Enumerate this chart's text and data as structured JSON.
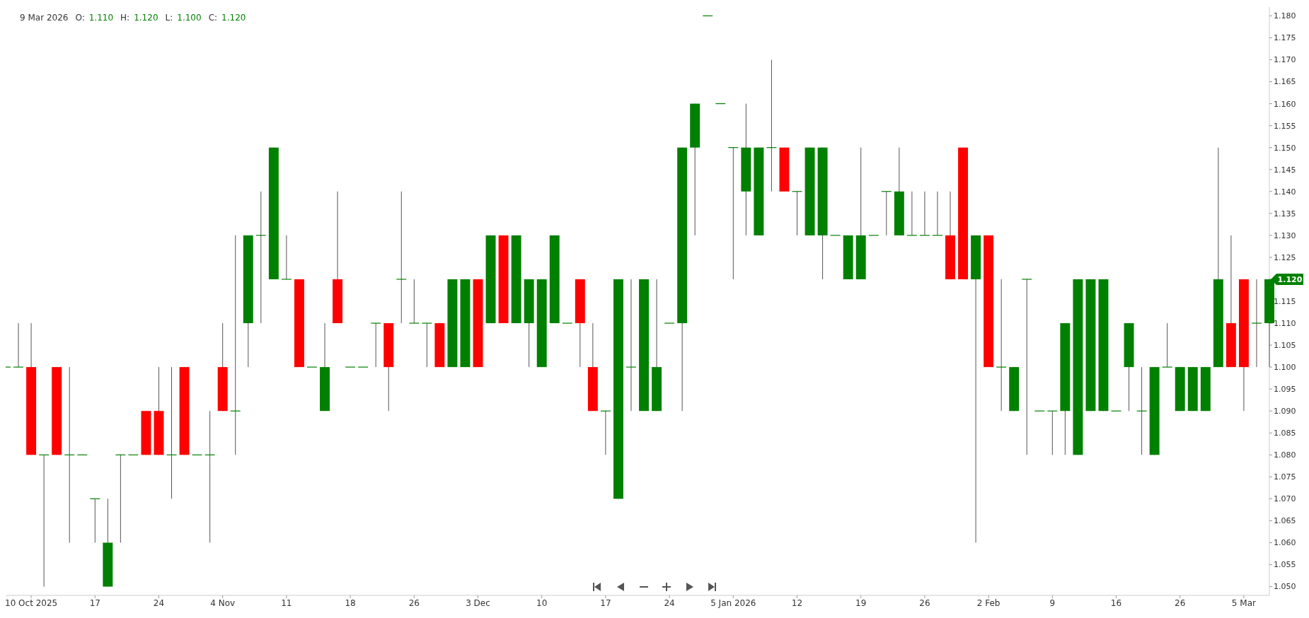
{
  "chart_data": {
    "type": "candlestick",
    "title": "9 Mar 2026",
    "annotations": [
      "O: 1.110",
      "H: 1.120",
      "L: 1.100",
      "C: 1.120",
      "1.120"
    ],
    "categories": [
      null,
      null,
      "10 Oct 2025",
      null,
      null,
      null,
      null,
      "17",
      null,
      null,
      null,
      null,
      "24",
      null,
      null,
      null,
      null,
      "4 Nov",
      null,
      null,
      null,
      null,
      "11",
      null,
      null,
      null,
      null,
      "18",
      null,
      null,
      null,
      null,
      "26",
      null,
      null,
      null,
      null,
      "3 Dec",
      null,
      null,
      null,
      null,
      "10",
      null,
      null,
      null,
      null,
      "17",
      null,
      null,
      null,
      null,
      "24",
      null,
      null,
      null,
      null,
      "5 Jan 2026",
      null,
      null,
      null,
      null,
      "12",
      null,
      null,
      null,
      null,
      "19",
      null,
      null,
      null,
      null,
      "26",
      null,
      null,
      null,
      null,
      "2 Feb",
      null,
      null,
      null,
      null,
      "9",
      null,
      null,
      null,
      null,
      "16",
      null,
      null,
      null,
      null,
      "26",
      null,
      null,
      null,
      null,
      "5 Mar",
      null,
      null
    ],
    "ohlc": [
      [
        1.1,
        1.1,
        1.1,
        1.1
      ],
      [
        1.1,
        1.11,
        1.1,
        1.1
      ],
      [
        1.1,
        1.11,
        1.08,
        1.08
      ],
      [
        1.08,
        1.08,
        1.05,
        1.08
      ],
      [
        1.1,
        1.1,
        1.08,
        1.08
      ],
      [
        1.08,
        1.1,
        1.06,
        1.08
      ],
      [
        1.08,
        1.08,
        1.08,
        1.08
      ],
      [
        1.07,
        1.07,
        1.06,
        1.07
      ],
      [
        1.05,
        1.07,
        1.05,
        1.06
      ],
      [
        1.08,
        1.08,
        1.06,
        1.08
      ],
      [
        1.08,
        1.08,
        1.08,
        1.08
      ],
      [
        1.09,
        1.09,
        1.08,
        1.08
      ],
      [
        1.09,
        1.1,
        1.08,
        1.08
      ],
      [
        1.08,
        1.1,
        1.07,
        1.08
      ],
      [
        1.1,
        1.1,
        1.08,
        1.08
      ],
      [
        1.08,
        1.08,
        1.08,
        1.08
      ],
      [
        1.08,
        1.09,
        1.06,
        1.08
      ],
      [
        1.1,
        1.11,
        1.09,
        1.09
      ],
      [
        1.09,
        1.13,
        1.08,
        1.09
      ],
      [
        1.11,
        1.13,
        1.1,
        1.13
      ],
      [
        1.13,
        1.14,
        1.11,
        1.13
      ],
      [
        1.12,
        1.15,
        1.12,
        1.15
      ],
      [
        1.12,
        1.13,
        1.12,
        1.12
      ],
      [
        1.12,
        1.12,
        1.1,
        1.1
      ],
      [
        1.1,
        1.1,
        1.1,
        1.1
      ],
      [
        1.09,
        1.11,
        1.09,
        1.1
      ],
      [
        1.12,
        1.14,
        1.11,
        1.11
      ],
      [
        1.1,
        1.1,
        1.1,
        1.1
      ],
      [
        1.1,
        1.1,
        1.1,
        1.1
      ],
      [
        1.11,
        1.11,
        1.1,
        1.11
      ],
      [
        1.11,
        1.11,
        1.09,
        1.1
      ],
      [
        1.12,
        1.14,
        1.11,
        1.12
      ],
      [
        1.11,
        1.12,
        1.11,
        1.11
      ],
      [
        1.11,
        1.11,
        1.1,
        1.11
      ],
      [
        1.11,
        1.11,
        1.1,
        1.1
      ],
      [
        1.1,
        1.12,
        1.1,
        1.12
      ],
      [
        1.1,
        1.12,
        1.1,
        1.12
      ],
      [
        1.12,
        1.12,
        1.1,
        1.1
      ],
      [
        1.11,
        1.13,
        1.11,
        1.13
      ],
      [
        1.13,
        1.13,
        1.11,
        1.11
      ],
      [
        1.11,
        1.13,
        1.11,
        1.13
      ],
      [
        1.11,
        1.12,
        1.1,
        1.12
      ],
      [
        1.1,
        1.12,
        1.1,
        1.12
      ],
      [
        1.11,
        1.13,
        1.11,
        1.13
      ],
      [
        1.11,
        1.11,
        1.11,
        1.11
      ],
      [
        1.12,
        1.12,
        1.1,
        1.11
      ],
      [
        1.1,
        1.11,
        1.09,
        1.09
      ],
      [
        1.09,
        1.09,
        1.08,
        1.09
      ],
      [
        1.07,
        1.12,
        1.07,
        1.12
      ],
      [
        1.1,
        1.12,
        1.09,
        1.1
      ],
      [
        1.09,
        1.12,
        1.09,
        1.12
      ],
      [
        1.09,
        1.12,
        1.09,
        1.1
      ],
      [
        1.11,
        1.11,
        1.11,
        1.11
      ],
      [
        1.11,
        1.15,
        1.09,
        1.15
      ],
      [
        1.15,
        1.16,
        1.13,
        1.16
      ],
      [
        1.18,
        1.18,
        1.18,
        1.18
      ],
      [
        1.16,
        1.16,
        1.16,
        1.16
      ],
      [
        1.15,
        1.15,
        1.12,
        1.15
      ],
      [
        1.14,
        1.16,
        1.13,
        1.15
      ],
      [
        1.13,
        1.15,
        1.13,
        1.15
      ],
      [
        1.15,
        1.17,
        1.14,
        1.15
      ],
      [
        1.15,
        1.15,
        1.14,
        1.14
      ],
      [
        1.14,
        1.14,
        1.13,
        1.14
      ],
      [
        1.13,
        1.15,
        1.13,
        1.15
      ],
      [
        1.13,
        1.15,
        1.12,
        1.15
      ],
      [
        1.13,
        1.13,
        1.13,
        1.13
      ],
      [
        1.12,
        1.13,
        1.12,
        1.13
      ],
      [
        1.12,
        1.15,
        1.12,
        1.13
      ],
      [
        1.13,
        1.13,
        1.13,
        1.13
      ],
      [
        1.14,
        1.14,
        1.13,
        1.14
      ],
      [
        1.13,
        1.15,
        1.13,
        1.14
      ],
      [
        1.13,
        1.14,
        1.13,
        1.13
      ],
      [
        1.13,
        1.14,
        1.13,
        1.13
      ],
      [
        1.13,
        1.14,
        1.13,
        1.13
      ],
      [
        1.13,
        1.14,
        1.12,
        1.12
      ],
      [
        1.15,
        1.15,
        1.12,
        1.12
      ],
      [
        1.12,
        1.13,
        1.06,
        1.13
      ],
      [
        1.13,
        1.13,
        1.1,
        1.1
      ],
      [
        1.1,
        1.12,
        1.09,
        1.1
      ],
      [
        1.09,
        1.1,
        1.09,
        1.1
      ],
      [
        1.12,
        1.12,
        1.08,
        1.12
      ],
      [
        1.09,
        1.09,
        1.09,
        1.09
      ],
      [
        1.09,
        1.09,
        1.08,
        1.09
      ],
      [
        1.09,
        1.11,
        1.08,
        1.11
      ],
      [
        1.08,
        1.12,
        1.08,
        1.12
      ],
      [
        1.09,
        1.12,
        1.09,
        1.12
      ],
      [
        1.09,
        1.12,
        1.09,
        1.12
      ],
      [
        1.09,
        1.09,
        1.09,
        1.09
      ],
      [
        1.1,
        1.11,
        1.09,
        1.11
      ],
      [
        1.09,
        1.1,
        1.08,
        1.09
      ],
      [
        1.08,
        1.1,
        1.08,
        1.1
      ],
      [
        1.1,
        1.11,
        1.1,
        1.1
      ],
      [
        1.09,
        1.1,
        1.09,
        1.1
      ],
      [
        1.09,
        1.1,
        1.09,
        1.1
      ],
      [
        1.09,
        1.1,
        1.09,
        1.1
      ],
      [
        1.1,
        1.15,
        1.1,
        1.12
      ],
      [
        1.11,
        1.13,
        1.1,
        1.1
      ],
      [
        1.12,
        1.12,
        1.09,
        1.1
      ],
      [
        1.11,
        1.12,
        1.1,
        1.11
      ],
      [
        1.11,
        1.12,
        1.1,
        1.12
      ]
    ],
    "colors": [
      "#008000",
      "#008000",
      "#ff0000",
      "#008000",
      "#ff0000",
      "#008000",
      "#008000",
      "#008000",
      "#008000",
      "#008000",
      "#008000",
      "#ff0000",
      "#ff0000",
      "#008000",
      "#ff0000",
      "#008000",
      "#008000",
      "#ff0000",
      "#008000",
      "#008000",
      "#008000",
      "#008000",
      "#008000",
      "#ff0000",
      "#008000",
      "#008000",
      "#ff0000",
      "#008000",
      "#008000",
      "#008000",
      "#ff0000",
      "#008000",
      "#008000",
      "#008000",
      "#ff0000",
      "#008000",
      "#008000",
      "#ff0000",
      "#008000",
      "#ff0000",
      "#008000",
      "#008000",
      "#008000",
      "#008000",
      "#008000",
      "#ff0000",
      "#ff0000",
      "#008000",
      "#008000",
      "#008000",
      "#008000",
      "#008000",
      "#008000",
      "#008000",
      "#008000",
      "#008000",
      "#008000",
      "#008000",
      "#008000",
      "#008000",
      "#008000",
      "#ff0000",
      "#008000",
      "#008000",
      "#008000",
      "#008000",
      "#008000",
      "#008000",
      "#008000",
      "#008000",
      "#008000",
      "#008000",
      "#008000",
      "#008000",
      "#ff0000",
      "#ff0000",
      "#008000",
      "#ff0000",
      "#008000",
      "#008000",
      "#008000",
      "#008000",
      "#008000",
      "#008000",
      "#008000",
      "#008000",
      "#008000",
      "#008000",
      "#008000",
      "#008000",
      "#008000",
      "#008000",
      "#008000",
      "#008000",
      "#008000",
      "#008000",
      "#ff0000",
      "#ff0000",
      "#008000",
      "#008000"
    ],
    "ylim": [
      1.048,
      1.182
    ],
    "yticks": [
      {
        "value": 1.05,
        "label": "1.050"
      },
      {
        "value": 1.055,
        "label": "1.055"
      },
      {
        "value": 1.06,
        "label": "1.060"
      },
      {
        "value": 1.065,
        "label": "1.065"
      },
      {
        "value": 1.07,
        "label": "1.070"
      },
      {
        "value": 1.075,
        "label": "1.075"
      },
      {
        "value": 1.08,
        "label": "1.080"
      },
      {
        "value": 1.085,
        "label": "1.085"
      },
      {
        "value": 1.09,
        "label": "1.090"
      },
      {
        "value": 1.095,
        "label": "1.095"
      },
      {
        "value": 1.1,
        "label": "1.100"
      },
      {
        "value": 1.105,
        "label": "1.105"
      },
      {
        "value": 1.11,
        "label": "1.110"
      },
      {
        "value": 1.115,
        "label": "1.115"
      },
      {
        "value": 1.12,
        "label": null
      },
      {
        "value": 1.125,
        "label": "1.125"
      },
      {
        "value": 1.13,
        "label": "1.130"
      },
      {
        "value": 1.135,
        "label": "1.135"
      },
      {
        "value": 1.14,
        "label": "1.140"
      },
      {
        "value": 1.145,
        "label": "1.145"
      },
      {
        "value": 1.15,
        "label": "1.150"
      },
      {
        "value": 1.155,
        "label": "1.155"
      },
      {
        "value": 1.16,
        "label": "1.160"
      },
      {
        "value": 1.165,
        "label": "1.165"
      },
      {
        "value": 1.17,
        "label": "1.170"
      },
      {
        "value": 1.175,
        "label": "1.175"
      },
      {
        "value": 1.18,
        "label": "1.180"
      }
    ],
    "grid": false,
    "legend": false
  }
}
